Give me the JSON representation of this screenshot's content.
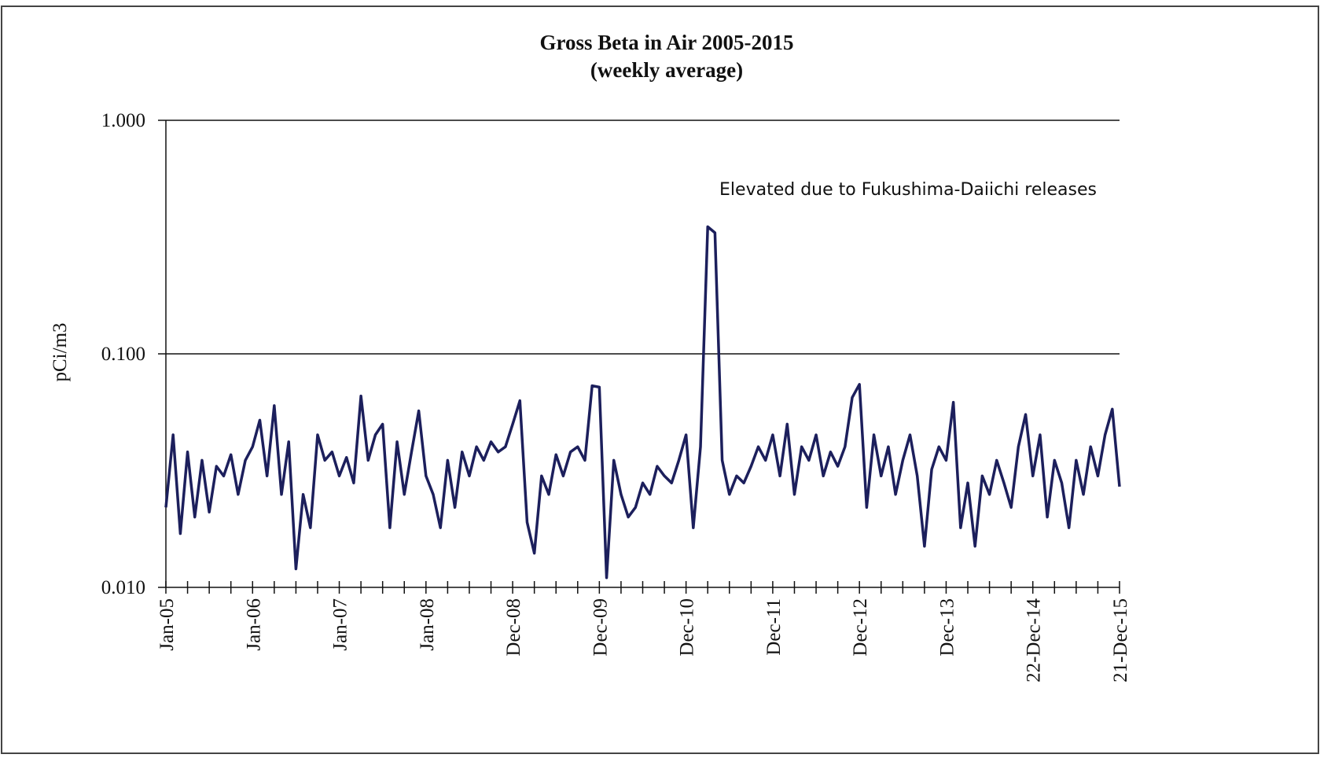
{
  "chart_data": {
    "type": "line",
    "title": "Gross Beta in Air 2005-2015",
    "subtitle": "(weekly average)",
    "y_label": "pCi/m3",
    "annotation": "Elevated due to Fukushima-Daiichi  releases",
    "log_scale": true,
    "grid": true,
    "color": "#1c1f5c",
    "ylim": [
      0.01,
      1
    ],
    "yticks": [
      {
        "value": 0.01,
        "label": "0.010"
      },
      {
        "value": 0.1,
        "label": "0.100"
      },
      {
        "value": 1,
        "label": "1.000"
      }
    ],
    "categories": [
      "Jan-05",
      null,
      null,
      null,
      null,
      null,
      null,
      null,
      null,
      null,
      null,
      null,
      "Jan-06",
      null,
      null,
      null,
      null,
      null,
      null,
      null,
      null,
      null,
      null,
      null,
      "Jan-07",
      null,
      null,
      null,
      null,
      null,
      null,
      null,
      null,
      null,
      null,
      null,
      "Jan-08",
      null,
      null,
      null,
      null,
      null,
      null,
      null,
      null,
      null,
      null,
      null,
      "Dec-08",
      null,
      null,
      null,
      null,
      null,
      null,
      null,
      null,
      null,
      null,
      null,
      "Dec-09",
      null,
      null,
      null,
      null,
      null,
      null,
      null,
      null,
      null,
      null,
      null,
      "Dec-10",
      null,
      null,
      null,
      null,
      null,
      null,
      null,
      null,
      null,
      null,
      null,
      "Dec-11",
      null,
      null,
      null,
      null,
      null,
      null,
      null,
      null,
      null,
      null,
      null,
      "Dec-12",
      null,
      null,
      null,
      null,
      null,
      null,
      null,
      null,
      null,
      null,
      null,
      "Dec-13",
      null,
      null,
      null,
      null,
      null,
      null,
      null,
      null,
      null,
      null,
      null,
      "22-Dec-14",
      null,
      null,
      null,
      null,
      null,
      null,
      null,
      null,
      null,
      null,
      null,
      "21-Dec-15"
    ],
    "values": [
      0.022,
      0.045,
      0.017,
      0.038,
      0.02,
      0.035,
      0.021,
      0.033,
      0.03,
      0.037,
      0.025,
      0.035,
      0.04,
      0.052,
      0.03,
      0.06,
      0.025,
      0.042,
      0.012,
      0.025,
      0.018,
      0.045,
      0.035,
      0.038,
      0.03,
      0.036,
      0.028,
      0.066,
      0.035,
      0.045,
      0.05,
      0.018,
      0.042,
      0.025,
      0.038,
      0.057,
      0.03,
      0.025,
      0.018,
      0.035,
      0.022,
      0.038,
      0.03,
      0.04,
      0.035,
      0.042,
      0.038,
      0.04,
      0.05,
      0.063,
      0.019,
      0.014,
      0.03,
      0.025,
      0.037,
      0.03,
      0.038,
      0.04,
      0.035,
      0.073,
      0.072,
      0.011,
      0.035,
      0.025,
      0.02,
      0.022,
      0.028,
      0.025,
      0.033,
      0.03,
      0.028,
      0.035,
      0.045,
      0.018,
      0.04,
      0.35,
      0.33,
      0.035,
      0.025,
      0.03,
      0.028,
      0.033,
      0.04,
      0.035,
      0.045,
      0.03,
      0.05,
      0.025,
      0.04,
      0.035,
      0.045,
      0.03,
      0.038,
      0.033,
      0.04,
      0.065,
      0.074,
      0.022,
      0.045,
      0.03,
      0.04,
      0.025,
      0.035,
      0.045,
      0.03,
      0.015,
      0.032,
      0.04,
      0.035,
      0.062,
      0.018,
      0.028,
      0.015,
      0.03,
      0.025,
      0.035,
      0.028,
      0.022,
      0.04,
      0.055,
      0.03,
      0.045,
      0.02,
      0.035,
      0.028,
      0.018,
      0.035,
      0.025,
      0.04,
      0.03,
      0.045,
      0.058,
      0.027
    ]
  }
}
